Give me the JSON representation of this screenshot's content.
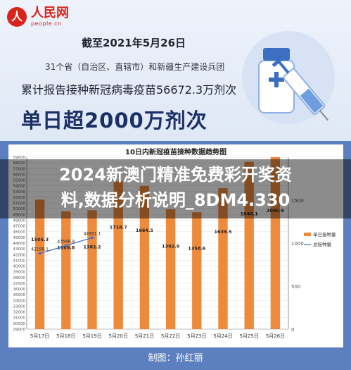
{
  "logo": {
    "name": "人民网",
    "url": "people.cn",
    "mark": "人"
  },
  "header": {
    "date": "截至2021年5月26日",
    "note": "31个省（自治区、直辖市）和新疆生产建设兵团",
    "cumulative": "累计报告接种新冠病毒疫苗56672.3万剂次",
    "headline": "单日超2000万剂次"
  },
  "overlay": {
    "line1": "2024新澳门精准免费彩开奖资",
    "line2": "料,数据分析说明_8DM4.330"
  },
  "credit": "制图：孙红丽",
  "colors": {
    "bar": "#ee8a3c",
    "line": "#3b6fc2",
    "brand": "#d9241b"
  },
  "chart_data": {
    "type": "bar",
    "title": "10日内新冠疫苗接种数据趋势图",
    "categories": [
      "5月17日",
      "5月18日",
      "5月19日",
      "5月20日",
      "5月21日",
      "5月22日",
      "5月23日",
      "5月24日",
      "5月25日",
      "5月26日"
    ],
    "series": [
      {
        "name": "单日接种量",
        "axis": "right",
        "values": [
          1505.3,
          1369.8,
          1382.2,
          1718.7,
          1664.5,
          1392.9,
          1358.6,
          1639.5,
          1946.1,
          2000.9
        ]
      },
      {
        "name": "总接种量",
        "axis": "left",
        "values": [
          42199.1,
          43568.9,
          44951.1,
          null,
          null,
          null,
          null,
          null,
          null,
          null
        ]
      }
    ],
    "left_axis": {
      "min": 29000,
      "max": 59000,
      "step": 1000
    },
    "right_axis": {
      "min": 0,
      "max": 2000,
      "ticks": [
        0,
        500,
        1000,
        1500
      ]
    },
    "legend_position": "right"
  }
}
